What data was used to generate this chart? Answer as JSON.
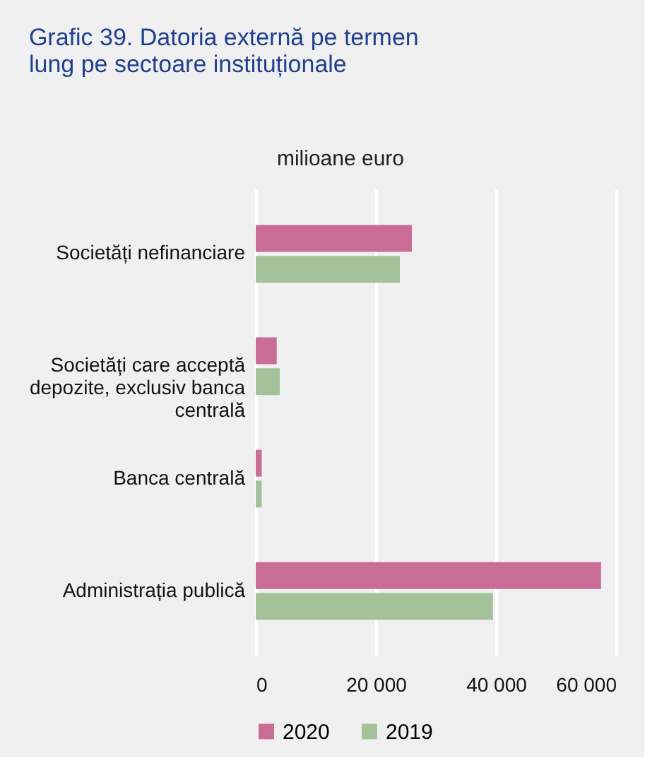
{
  "chart_data": {
    "type": "bar",
    "orientation": "horizontal",
    "title": "Grafic 39. Datoria externă pe termen lung pe sectoare instituționale",
    "xlabel": "milioane euro",
    "categories": [
      "Societăți nefinanciare",
      "Societăți care acceptă depozite, exclusiv banca centrală",
      "Banca centrală",
      "Administrația publică"
    ],
    "series": [
      {
        "name": "2020",
        "color": "#c96d98",
        "values": [
          26000,
          3500,
          1000,
          57500
        ]
      },
      {
        "name": "2019",
        "color": "#a3c29a",
        "values": [
          24000,
          4000,
          1000,
          39500
        ]
      }
    ],
    "xlim": [
      0,
      60000
    ],
    "xticks": [
      {
        "value": 0,
        "label": "0"
      },
      {
        "value": 20000,
        "label": "20 000"
      },
      {
        "value": 40000,
        "label": "40 000"
      },
      {
        "value": 60000,
        "label": "60 000"
      }
    ],
    "grid": "x",
    "legend": "bottom"
  }
}
